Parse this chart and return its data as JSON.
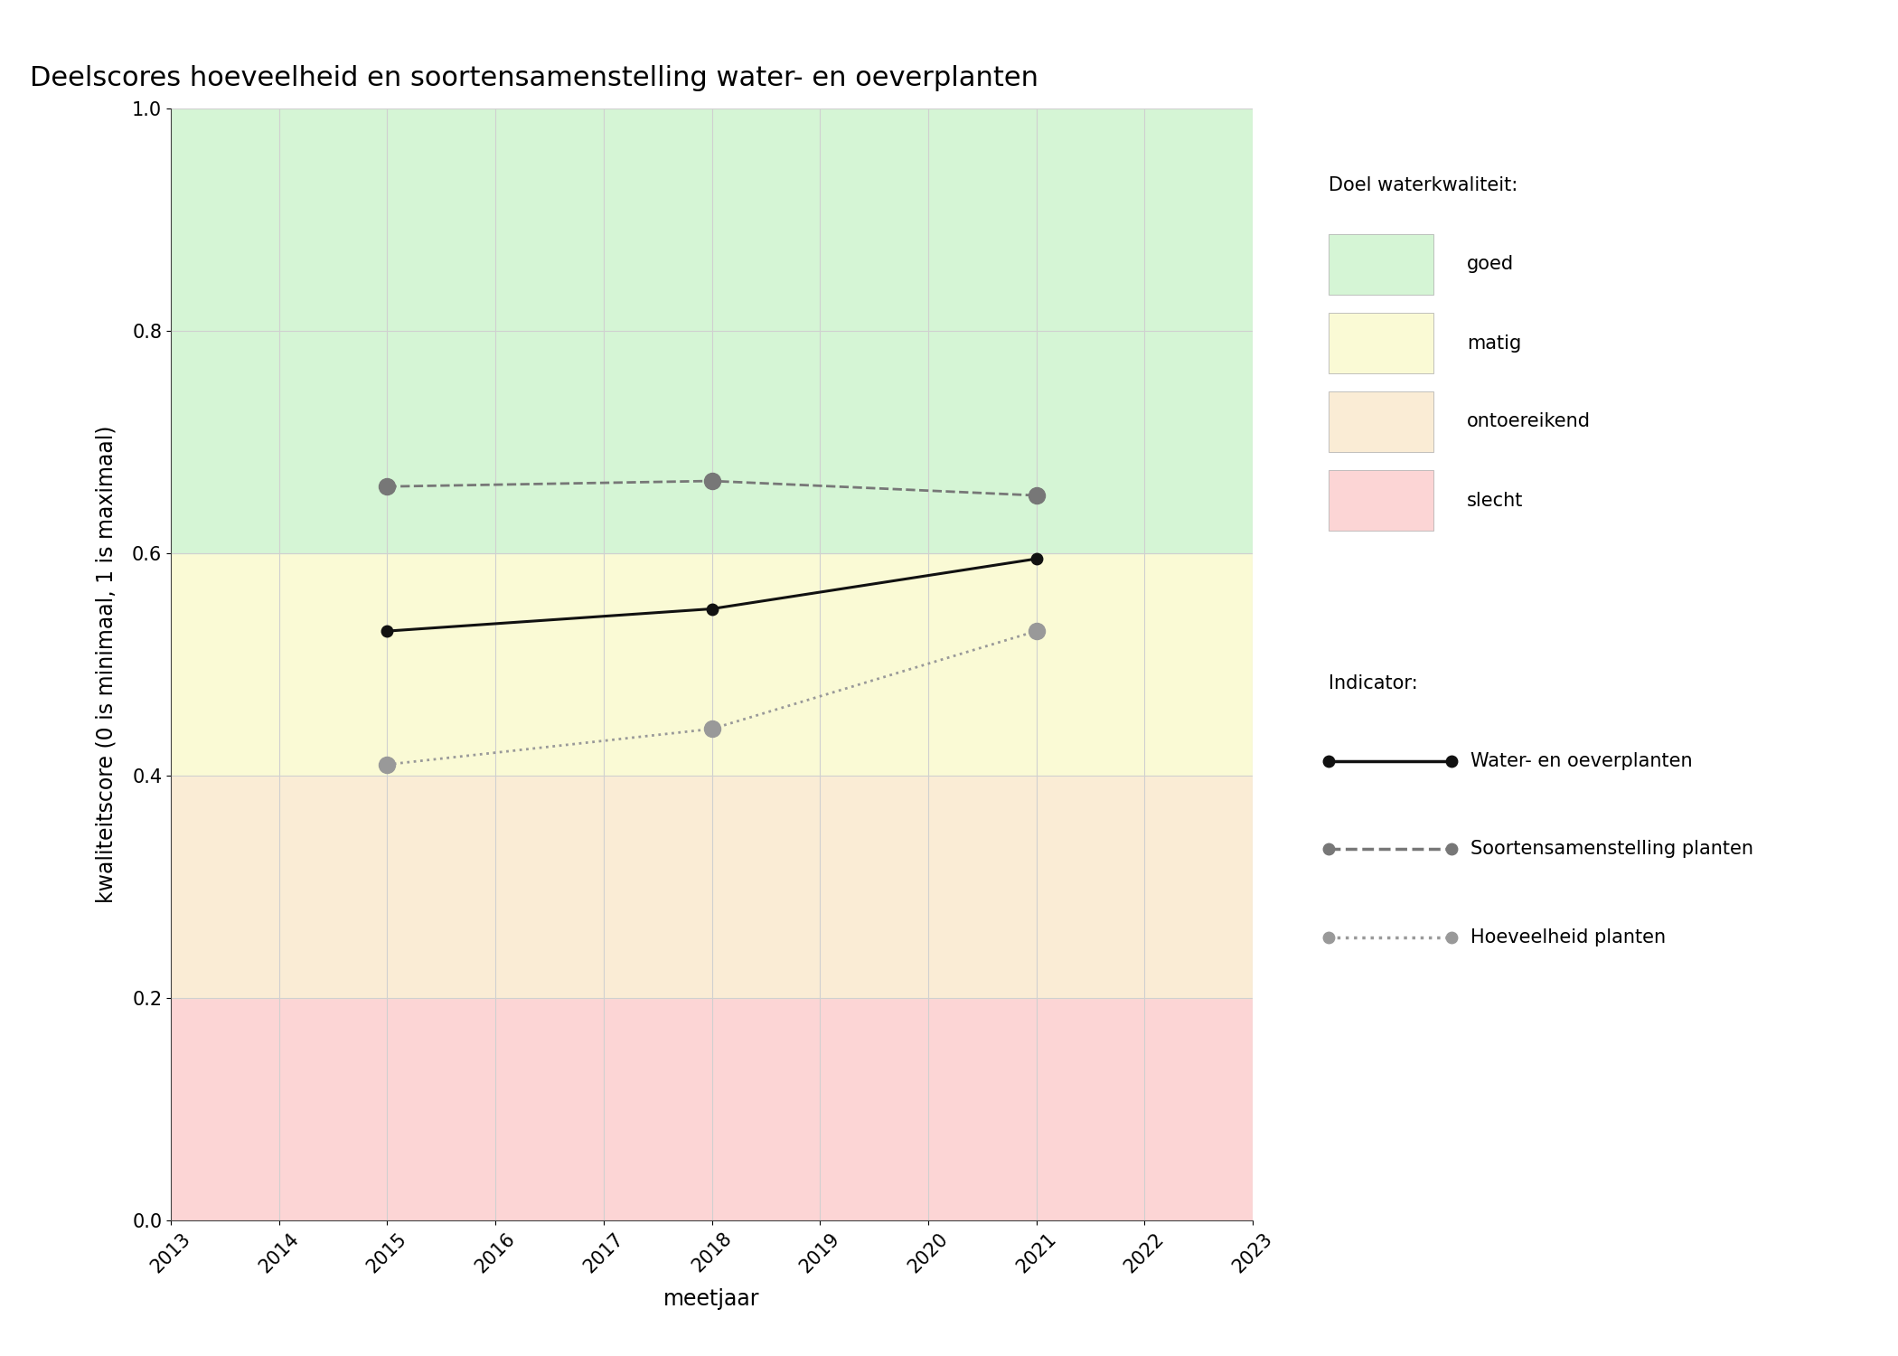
{
  "title": "Deelscores hoeveelheid en soortensamenstelling water- en oeverplanten",
  "xlabel": "meetjaar",
  "ylabel": "kwaliteitscore (0 is minimaal, 1 is maximaal)",
  "xlim": [
    2013,
    2023
  ],
  "ylim": [
    0.0,
    1.0
  ],
  "xticks": [
    2013,
    2014,
    2015,
    2016,
    2017,
    2018,
    2019,
    2020,
    2021,
    2022,
    2023
  ],
  "yticks": [
    0.0,
    0.2,
    0.4,
    0.6,
    0.8,
    1.0
  ],
  "background_zones": [
    {
      "ymin": 0.0,
      "ymax": 0.2,
      "color": "#fcd5d5",
      "label": "slecht"
    },
    {
      "ymin": 0.2,
      "ymax": 0.4,
      "color": "#faecd5",
      "label": "ontoereikend"
    },
    {
      "ymin": 0.4,
      "ymax": 0.6,
      "color": "#fafad5",
      "label": "matig"
    },
    {
      "ymin": 0.6,
      "ymax": 1.0,
      "color": "#d5f5d5",
      "label": "goed"
    }
  ],
  "series": [
    {
      "name": "Water- en oeverplanten",
      "years": [
        2015,
        2018,
        2021
      ],
      "values": [
        0.53,
        0.55,
        0.595
      ],
      "color": "#111111",
      "linestyle": "solid",
      "linewidth": 2.2,
      "marker": "o",
      "markersize": 9,
      "markerfacecolor": "#111111",
      "markeredgecolor": "#111111"
    },
    {
      "name": "Soortensamenstelling planten",
      "years": [
        2015,
        2018,
        2021
      ],
      "values": [
        0.66,
        0.665,
        0.652
      ],
      "color": "#777777",
      "linestyle": "dashed",
      "linewidth": 2.0,
      "marker": "o",
      "markersize": 13,
      "markerfacecolor": "#777777",
      "markeredgecolor": "#777777"
    },
    {
      "name": "Hoeveelheid planten",
      "years": [
        2015,
        2018,
        2021
      ],
      "values": [
        0.41,
        0.442,
        0.53
      ],
      "color": "#999999",
      "linestyle": "dotted",
      "linewidth": 2.0,
      "marker": "o",
      "markersize": 13,
      "markerfacecolor": "#999999",
      "markeredgecolor": "#999999"
    }
  ],
  "legend_quality_title": "Doel waterkwaliteit:",
  "legend_indicator_title": "Indicator:",
  "legend_quality_items": [
    {
      "label": "goed",
      "color": "#d5f5d5"
    },
    {
      "label": "matig",
      "color": "#fafad5"
    },
    {
      "label": "ontoereikend",
      "color": "#faecd5"
    },
    {
      "label": "slecht",
      "color": "#fcd5d5"
    }
  ],
  "legend_series": [
    {
      "label": "Water- en oeverplanten",
      "color": "#111111",
      "linestyle": "solid",
      "markercolor": "#111111"
    },
    {
      "label": "Soortensamenstelling planten",
      "color": "#777777",
      "linestyle": "dashed",
      "markercolor": "#777777"
    },
    {
      "label": "Hoeveelheid planten",
      "color": "#999999",
      "linestyle": "dotted",
      "markercolor": "#999999"
    }
  ],
  "fig_width": 21.0,
  "fig_height": 15.0,
  "dpi": 100,
  "bg_color": "#ffffff",
  "grid_color": "#d0d0d0",
  "title_fontsize": 22,
  "axis_label_fontsize": 17,
  "tick_fontsize": 15,
  "legend_fontsize": 15
}
